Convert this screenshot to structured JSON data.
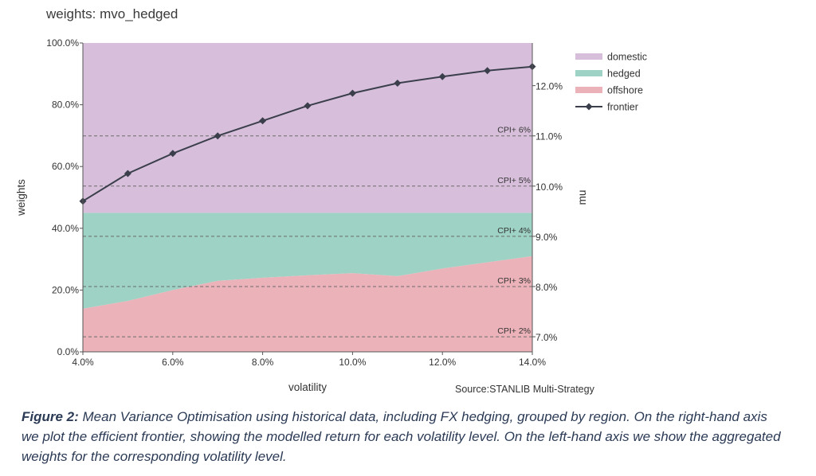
{
  "chart_data": {
    "type": "area",
    "title": "weights: mvo_hedged",
    "xlabel": "volatility",
    "ylabel": "weights",
    "y2label": "mu",
    "x": [
      4,
      5,
      6,
      7,
      8,
      9,
      10,
      11,
      12,
      13,
      14
    ],
    "x_tick_labels": [
      "4.0%",
      "6.0%",
      "8.0%",
      "10.0%",
      "12.0%",
      "14.0%"
    ],
    "x_ticks": [
      4,
      6,
      8,
      10,
      12,
      14
    ],
    "ylim": [
      0,
      100
    ],
    "y_ticks": [
      0,
      20,
      40,
      60,
      80,
      100
    ],
    "y_tick_labels": [
      "0.0%",
      "20.0%",
      "40.0%",
      "60.0%",
      "80.0%",
      "100.0%"
    ],
    "y2lim": [
      6.7,
      12.85
    ],
    "y2_ticks": [
      7,
      8,
      9,
      10,
      11,
      12
    ],
    "y2_tick_labels": [
      "7.0%",
      "8.0%",
      "9.0%",
      "10.0%",
      "11.0%",
      "12.0%"
    ],
    "stacked_series": [
      {
        "name": "offshore",
        "color": "#ebb3b9",
        "values": [
          14,
          16.5,
          20,
          23,
          24,
          24.8,
          25.5,
          24.5,
          27,
          29,
          31
        ]
      },
      {
        "name": "hedged",
        "color": "#9dd2c4",
        "values": [
          31,
          28.5,
          25,
          22,
          21,
          20.2,
          19.5,
          20.5,
          18,
          16,
          14
        ]
      },
      {
        "name": "domestic",
        "color": "#d7bfdb",
        "values": [
          55,
          55,
          55,
          55,
          55,
          55,
          55,
          55,
          55,
          55,
          55
        ]
      }
    ],
    "frontier": {
      "name": "frontier",
      "color": "#3b3f4c",
      "values": [
        9.7,
        10.25,
        10.65,
        11.0,
        11.3,
        11.6,
        11.85,
        12.05,
        12.18,
        12.3,
        12.38
      ]
    },
    "cpi_lines": [
      {
        "label": "CPI+ 2%",
        "value": 7.0
      },
      {
        "label": "CPI+ 3%",
        "value": 8.0
      },
      {
        "label": "CPI+ 4%",
        "value": 9.0
      },
      {
        "label": "CPI+ 5%",
        "value": 10.0
      },
      {
        "label": "CPI+ 6%",
        "value": 11.0
      }
    ],
    "legend": {
      "position": "top-right",
      "order": [
        "domestic",
        "hedged",
        "offshore",
        "frontier"
      ]
    }
  },
  "source": "Source:STANLIB Multi-Strategy",
  "caption": {
    "label": "Figure 2:",
    "text": " Mean Variance Optimisation using historical data, including FX hedging, grouped by region. On the right-hand axis we plot the efficient frontier, showing the modelled return for each volatility level. On the left-hand axis we show the aggregated weights for the corresponding volatility level."
  }
}
